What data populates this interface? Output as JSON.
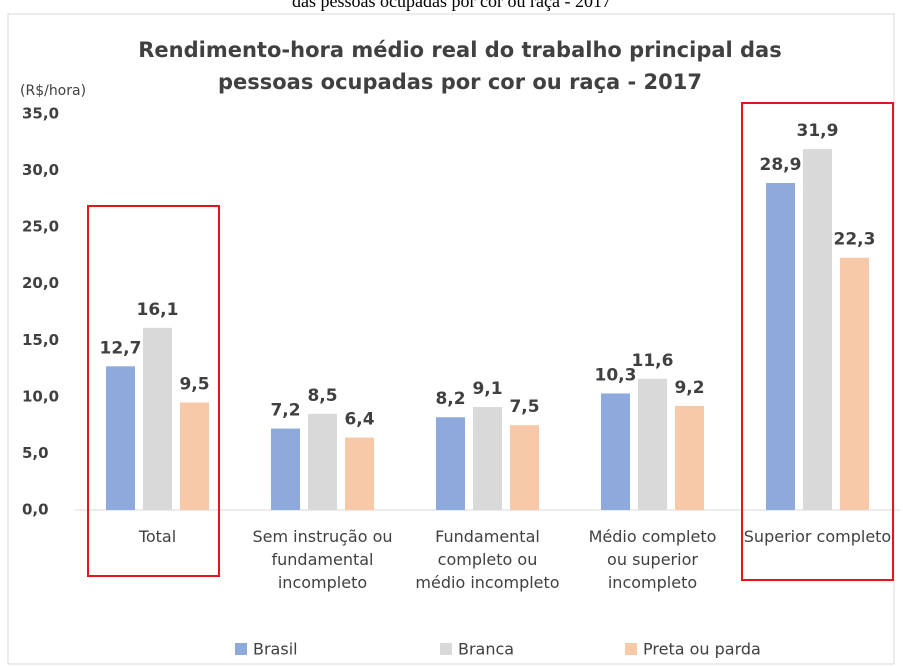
{
  "chart_data": {
    "type": "bar",
    "caption": "das pessoas ocupadas por cor ou raça - 2017",
    "title": "Rendimento-hora médio real do trabalho principal das pessoas ocupadas por cor ou raça - 2017",
    "y_label": "(R$/hora)",
    "categories": [
      "Total",
      "Sem instrução ou fundamental incompleto",
      "Fundamental completo ou médio incompleto",
      "Médio completo ou superior incompleto",
      "Superior completo"
    ],
    "series": [
      {
        "name": "Brasil",
        "color": "#8eaadc",
        "values": [
          12.7,
          7.2,
          8.2,
          10.3,
          28.9
        ],
        "value_labels": [
          "12,7",
          "7,2",
          "8,2",
          "10,3",
          "28,9"
        ]
      },
      {
        "name": "Branca",
        "color": "#d9d9d9",
        "values": [
          16.1,
          8.5,
          9.1,
          11.6,
          31.9
        ],
        "value_labels": [
          "16,1",
          "8,5",
          "9,1",
          "11,6",
          "31,9"
        ]
      },
      {
        "name": "Preta ou parda",
        "color": "#f7c9a9",
        "values": [
          9.5,
          6.4,
          7.5,
          9.2,
          22.3
        ],
        "value_labels": [
          "9,5",
          "6,4",
          "7,5",
          "9,2",
          "22,3"
        ]
      }
    ],
    "ylim": [
      0,
      35
    ],
    "yticks": [
      {
        "value": 0,
        "label": "0,0"
      },
      {
        "value": 5,
        "label": "5,0"
      },
      {
        "value": 10,
        "label": "10,0"
      },
      {
        "value": 15,
        "label": "15,0"
      },
      {
        "value": 20,
        "label": "20,0"
      },
      {
        "value": 25,
        "label": "25,0"
      },
      {
        "value": 30,
        "label": "30,0"
      },
      {
        "value": 35,
        "label": "35,0"
      }
    ],
    "legend": "bottom"
  }
}
